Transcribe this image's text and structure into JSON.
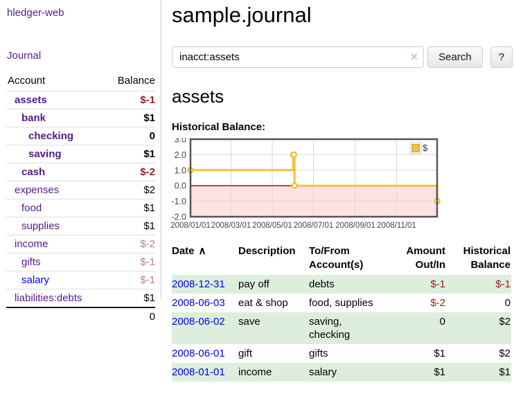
{
  "app": {
    "brand": "hledger-web"
  },
  "sidebar": {
    "journal_link": "Journal",
    "headers": {
      "account": "Account",
      "balance": "Balance"
    },
    "accounts": [
      {
        "name": "assets",
        "balance": "$-1",
        "level": 1,
        "bold": true,
        "balance_style": "neg-strong",
        "link_style": "purple"
      },
      {
        "name": "bank",
        "balance": "$1",
        "level": 2,
        "bold": true,
        "balance_style": "normal",
        "link_style": "purple"
      },
      {
        "name": "checking",
        "balance": "0",
        "level": 3,
        "bold": true,
        "balance_style": "normal",
        "link_style": "purple"
      },
      {
        "name": "saving",
        "balance": "$1",
        "level": 3,
        "bold": true,
        "balance_style": "normal",
        "link_style": "purple"
      },
      {
        "name": "cash",
        "balance": "$-2",
        "level": 2,
        "bold": true,
        "balance_style": "neg-strong",
        "link_style": "purple"
      },
      {
        "name": "expenses",
        "balance": "$2",
        "level": 1,
        "bold": false,
        "balance_style": "normal",
        "link_style": "purple"
      },
      {
        "name": "food",
        "balance": "$1",
        "level": 2,
        "bold": false,
        "balance_style": "normal",
        "link_style": "purple"
      },
      {
        "name": "supplies",
        "balance": "$1",
        "level": 2,
        "bold": false,
        "balance_style": "normal",
        "link_style": "purple"
      },
      {
        "name": "income",
        "balance": "$-2",
        "level": 1,
        "bold": false,
        "balance_style": "neg-muted",
        "link_style": "purple"
      },
      {
        "name": "gifts",
        "balance": "$-1",
        "level": 2,
        "bold": false,
        "balance_style": "neg-muted",
        "link_style": "purple"
      },
      {
        "name": "salary",
        "balance": "$-1",
        "level": 2,
        "bold": false,
        "balance_style": "neg-muted",
        "link_style": "blue"
      },
      {
        "name": "liabilities:debts",
        "balance": "$1",
        "level": 1,
        "bold": false,
        "balance_style": "normal",
        "link_style": "purple"
      }
    ],
    "total": "0"
  },
  "main": {
    "title": "sample.journal",
    "search": {
      "value": "inacct:assets",
      "clear_icon": "×",
      "search_button": "Search",
      "help_button": "?"
    },
    "account_heading": "assets",
    "chart_title": "Historical Balance:"
  },
  "chart_data": {
    "type": "line",
    "step": true,
    "title": "Historical Balance",
    "series": [
      {
        "name": "$",
        "color": "#edc240",
        "points": [
          {
            "x": "2008-01-01",
            "y": 1
          },
          {
            "x": "2008-06-01",
            "y": 2
          },
          {
            "x": "2008-06-02",
            "y": 2
          },
          {
            "x": "2008-06-03",
            "y": 0
          },
          {
            "x": "2008-12-31",
            "y": -1
          }
        ]
      }
    ],
    "xlim": [
      "2008-01-01",
      "2008-12-31"
    ],
    "ylim": [
      -2,
      3
    ],
    "yticks": [
      "3.0",
      "2.0",
      "1.0",
      "0.0",
      "-1.0",
      "-2.0"
    ],
    "xticks": [
      "2008/01/01",
      "2008/03/01",
      "2008/05/01",
      "2008/07/01",
      "2008/09/01",
      "2008/11/01"
    ],
    "legend": {
      "position": "top-right",
      "label": "$"
    },
    "grid": true,
    "zero_line_color": "#8b0000",
    "negative_region_fill": "#ffe2e2"
  },
  "register": {
    "headers": {
      "date": "Date",
      "sort_icon": "∧",
      "description": "Description",
      "accounts": "To/From Account(s)",
      "amount": "Amount Out/In",
      "balance": "Historical Balance"
    },
    "rows": [
      {
        "date": "2008-12-31",
        "description": "pay off",
        "accounts": "debts",
        "amount": "$-1",
        "amount_negative": true,
        "balance": "$-1",
        "balance_negative": true,
        "shaded": true
      },
      {
        "date": "2008-06-03",
        "description": "eat & shop",
        "accounts": "food, supplies",
        "amount": "$-2",
        "amount_negative": true,
        "balance": "0",
        "balance_negative": false,
        "shaded": false
      },
      {
        "date": "2008-06-02",
        "description": "save",
        "accounts": "saving, checking",
        "amount": "0",
        "amount_negative": false,
        "balance": "$2",
        "balance_negative": false,
        "shaded": true
      },
      {
        "date": "2008-06-01",
        "description": "gift",
        "accounts": "gifts",
        "amount": "$1",
        "amount_negative": false,
        "balance": "$2",
        "balance_negative": false,
        "shaded": false
      },
      {
        "date": "2008-01-01",
        "description": "income",
        "accounts": "salary",
        "amount": "$1",
        "amount_negative": false,
        "balance": "$1",
        "balance_negative": false,
        "shaded": true
      }
    ]
  },
  "colors": {
    "link_purple": "#551a8b",
    "link_blue": "#0000ee",
    "negative_strong": "#9d1a1a",
    "negative_muted": "#c27c7c",
    "row_shade_green": "#ddeedd",
    "chart_line_yellow": "#edc240"
  }
}
